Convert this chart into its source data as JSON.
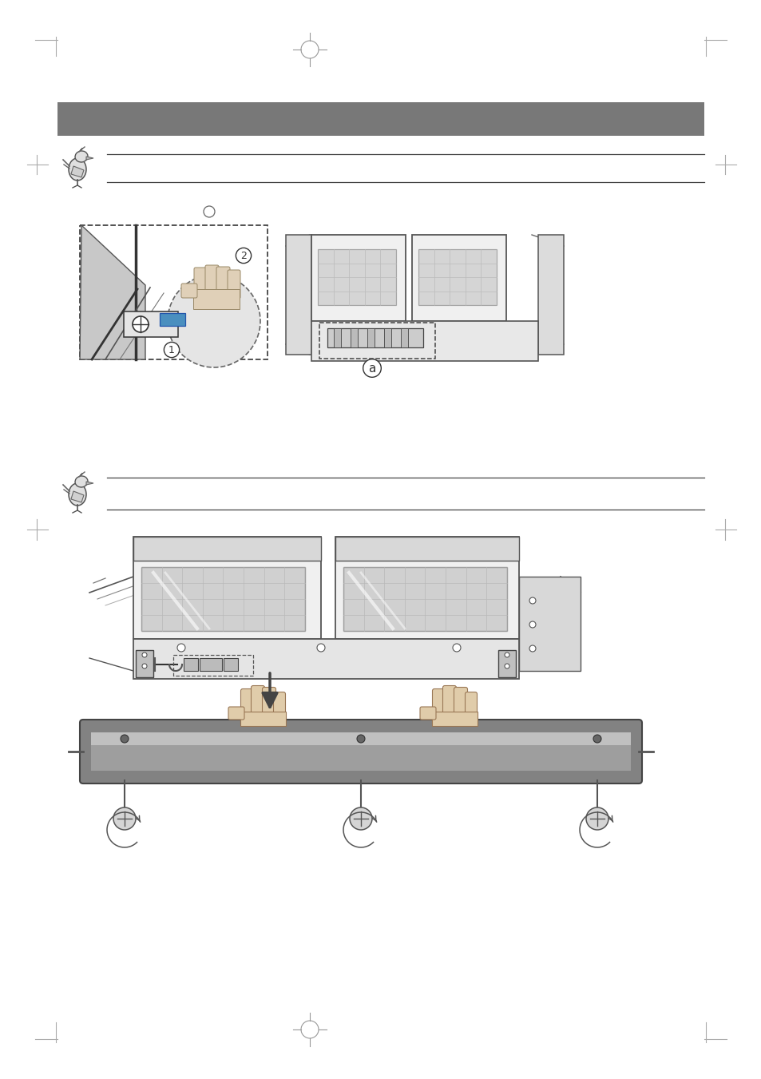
{
  "bg_color": "#ffffff",
  "header_bar_color": "#787878",
  "gray_light": "#e8e8e8",
  "gray_mid": "#cccccc",
  "gray_dark": "#888888",
  "border_color": "#555555",
  "line_color": "#333333",
  "dashed_color": "#444444",
  "door_fill": "#f0f0f0",
  "window_fill": "#d5d5d5",
  "handle_fill": "#828282",
  "handle_inner": "#9e9e9e",
  "handle_hi": "#c0c0c0",
  "hand_fill": "#e0ccaa",
  "blue_fill": "#4a8fbf",
  "screw_fill": "#d8d8d8",
  "margin_color": "#aaaaaa",
  "note_line_color": "#444444",
  "arrow_color": "#444444"
}
